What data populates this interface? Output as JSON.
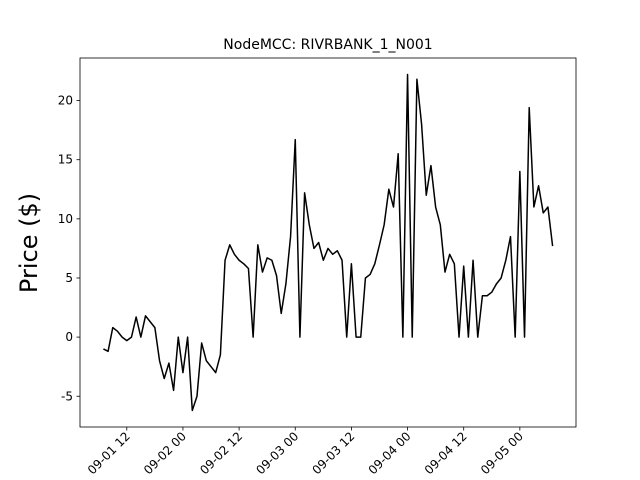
{
  "chart_data": {
    "type": "line",
    "title": "NodeMCC: RIVRBANK_1_N001",
    "y_label": "Price ($)",
    "color": "#000000",
    "x": [
      "09-01 07",
      "09-01 08",
      "09-01 09",
      "09-01 10",
      "09-01 11",
      "09-01 12",
      "09-01 13",
      "09-01 14",
      "09-01 15",
      "09-01 16",
      "09-01 17",
      "09-01 18",
      "09-01 19",
      "09-01 20",
      "09-01 21",
      "09-01 22",
      "09-01 23",
      "09-02 00",
      "09-02 01",
      "09-02 02",
      "09-02 03",
      "09-02 04",
      "09-02 05",
      "09-02 06",
      "09-02 07",
      "09-02 08",
      "09-02 09",
      "09-02 10",
      "09-02 11",
      "09-02 12",
      "09-02 13",
      "09-02 14",
      "09-02 15",
      "09-02 16",
      "09-02 17",
      "09-02 18",
      "09-02 19",
      "09-02 20",
      "09-02 21",
      "09-02 22",
      "09-02 23",
      "09-03 00",
      "09-03 01",
      "09-03 02",
      "09-03 03",
      "09-03 04",
      "09-03 05",
      "09-03 06",
      "09-03 07",
      "09-03 08",
      "09-03 09",
      "09-03 10",
      "09-03 11",
      "09-03 12",
      "09-03 13",
      "09-03 14",
      "09-03 15",
      "09-03 16",
      "09-03 17",
      "09-03 18",
      "09-03 19",
      "09-03 20",
      "09-03 21",
      "09-03 22",
      "09-03 23",
      "09-04 00",
      "09-04 01",
      "09-04 02",
      "09-04 03",
      "09-04 04",
      "09-04 05",
      "09-04 06",
      "09-04 07",
      "09-04 08",
      "09-04 09",
      "09-04 10",
      "09-04 11",
      "09-04 12",
      "09-04 13",
      "09-04 14",
      "09-04 15",
      "09-04 16",
      "09-04 17",
      "09-04 18",
      "09-04 19",
      "09-04 20",
      "09-04 21",
      "09-04 22",
      "09-04 23",
      "09-05 00",
      "09-05 01",
      "09-05 02",
      "09-05 03",
      "09-05 04",
      "09-05 05",
      "09-05 06",
      "09-05 07"
    ],
    "values": [
      -1.0,
      -1.2,
      0.8,
      0.5,
      0,
      -0.3,
      0,
      1.7,
      0,
      1.8,
      1.3,
      0.8,
      -2.0,
      -3.5,
      -2.2,
      -4.5,
      0,
      -3.0,
      0,
      -6.2,
      -5,
      -0.5,
      -2,
      -2.5,
      -3,
      -1.5,
      6.5,
      7.8,
      7,
      6.5,
      6.2,
      5.8,
      0,
      7.8,
      5.5,
      6.7,
      6.5,
      5.2,
      2,
      4.5,
      8.5,
      16.7,
      0,
      12.2,
      9.5,
      7.5,
      8,
      6.5,
      7.5,
      7,
      7.3,
      6.5,
      0,
      6.2,
      0,
      0,
      5,
      5.3,
      6.2,
      7.8,
      9.5,
      12.5,
      11,
      15.5,
      0,
      22.2,
      0,
      21.8,
      18,
      12,
      14.5,
      11,
      9.5,
      5.5,
      7,
      6.2,
      0,
      6,
      0,
      6.5,
      0,
      3.5,
      3.5,
      3.8,
      4.5,
      5,
      6.5,
      8.5,
      0,
      14,
      0,
      19.4,
      11,
      12.8,
      10.5,
      11,
      7.7
    ],
    "xlim": [
      "09-01 02",
      "09-05 12"
    ],
    "xticks": [
      "09-01 12",
      "09-02 00",
      "09-02 12",
      "09-03 00",
      "09-03 12",
      "09-04 00",
      "09-04 12",
      "09-05 00"
    ],
    "ylim": [
      -7.6,
      23.6
    ],
    "yticks": [
      -5,
      0,
      5,
      10,
      15,
      20
    ]
  }
}
